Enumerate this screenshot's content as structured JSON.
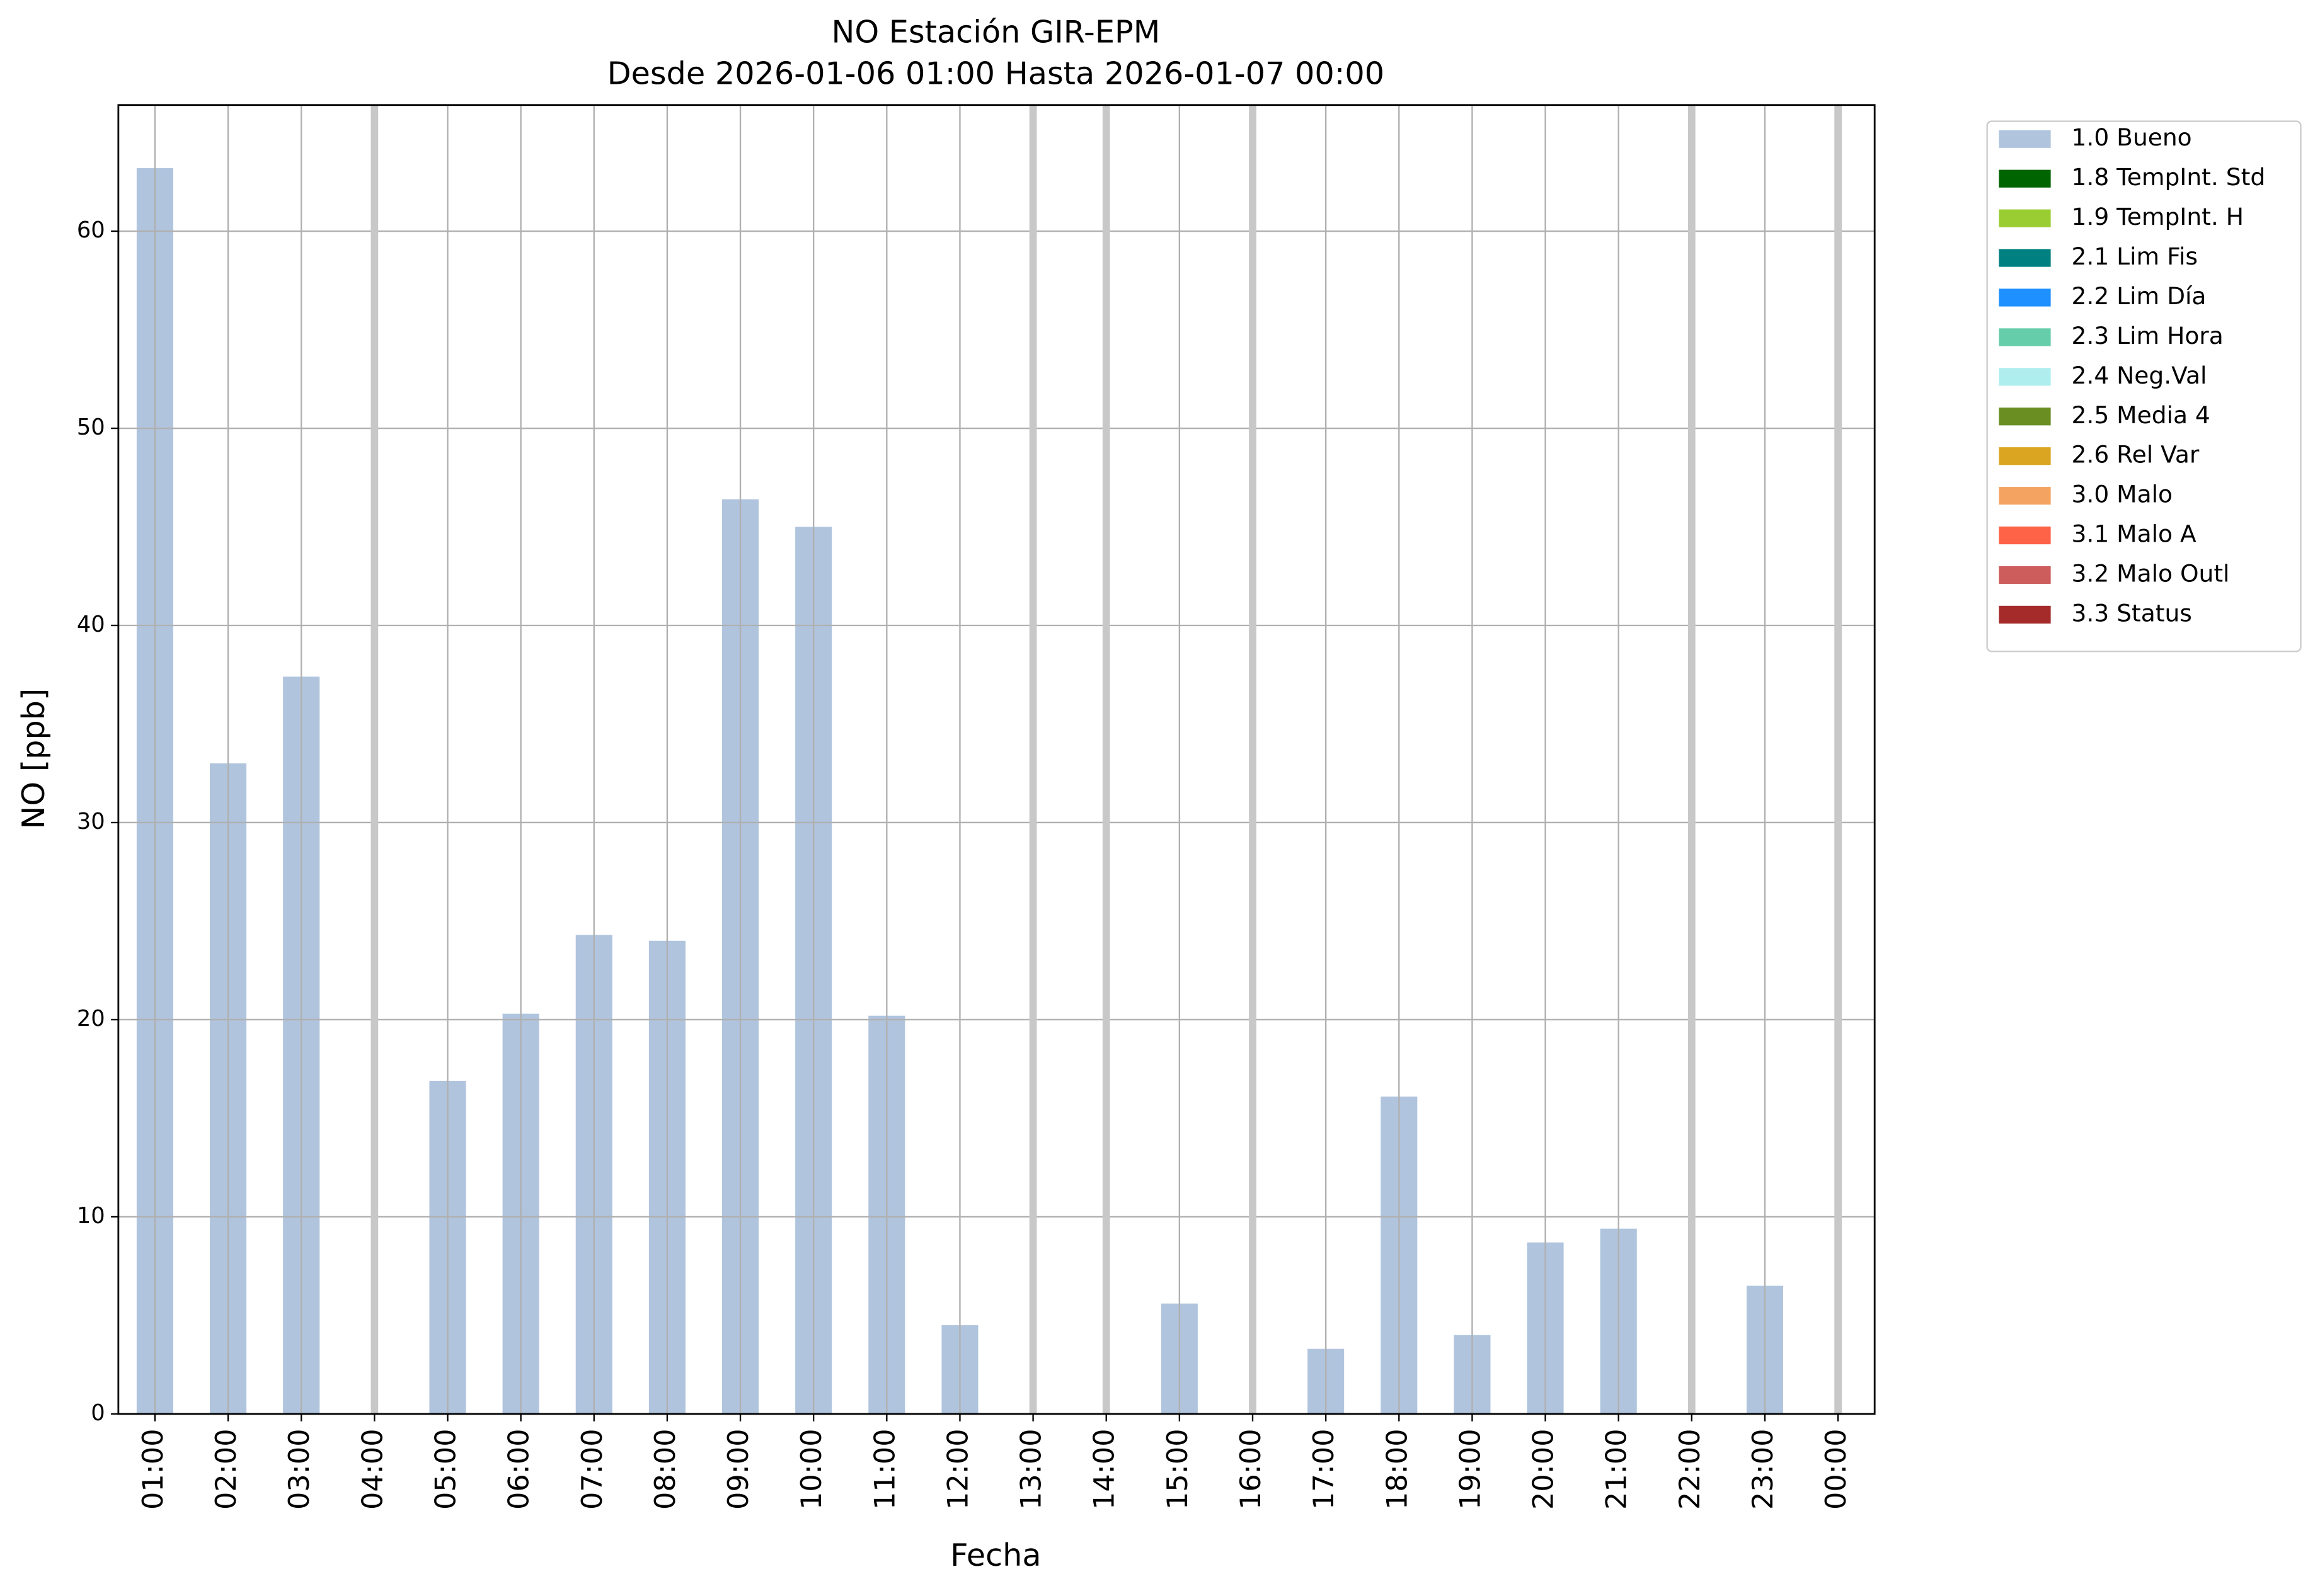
{
  "chart_data": {
    "type": "bar",
    "title": "NO Estación GIR-EPM",
    "subtitle": "Desde 2026-01-06 01:00 Hasta 2026-01-07 00:00",
    "x_label": "Fecha",
    "y_label": "NO [ppb]",
    "categories": [
      "01:00",
      "02:00",
      "03:00",
      "04:00",
      "05:00",
      "06:00",
      "07:00",
      "08:00",
      "09:00",
      "10:00",
      "11:00",
      "12:00",
      "13:00",
      "14:00",
      "15:00",
      "16:00",
      "17:00",
      "18:00",
      "19:00",
      "20:00",
      "21:00",
      "22:00",
      "23:00",
      "00:00"
    ],
    "series": [
      {
        "name": "1.0 Bueno",
        "color": "#b0c4de",
        "values": [
          63.2,
          33.0,
          37.4,
          null,
          16.9,
          20.3,
          24.3,
          24.0,
          46.4,
          45.0,
          20.2,
          4.5,
          null,
          null,
          5.6,
          null,
          3.3,
          16.1,
          4.0,
          8.7,
          9.4,
          null,
          6.5,
          null
        ]
      },
      {
        "name": "1.8 TempInt. Std",
        "color": "#006400",
        "values": [
          null,
          null,
          null,
          null,
          null,
          null,
          null,
          null,
          null,
          null,
          null,
          null,
          null,
          null,
          null,
          null,
          null,
          null,
          null,
          null,
          null,
          null,
          null,
          null
        ]
      },
      {
        "name": "1.9 TempInt. H",
        "color": "#9acd32",
        "values": [
          null,
          null,
          null,
          null,
          null,
          null,
          null,
          null,
          null,
          null,
          null,
          null,
          null,
          null,
          null,
          null,
          null,
          null,
          null,
          null,
          null,
          null,
          null,
          null
        ]
      },
      {
        "name": "2.1 Lim Fis",
        "color": "#008080",
        "values": [
          null,
          null,
          null,
          null,
          null,
          null,
          null,
          null,
          null,
          null,
          null,
          null,
          null,
          null,
          null,
          null,
          null,
          null,
          null,
          null,
          null,
          null,
          null,
          null
        ]
      },
      {
        "name": "2.2 Lim Día",
        "color": "#1e90ff",
        "values": [
          null,
          null,
          null,
          null,
          null,
          null,
          null,
          null,
          null,
          null,
          null,
          null,
          null,
          null,
          null,
          null,
          null,
          null,
          null,
          null,
          null,
          null,
          null,
          null
        ]
      },
      {
        "name": "2.3 Lim Hora",
        "color": "#66cdaa",
        "values": [
          null,
          null,
          null,
          null,
          null,
          null,
          null,
          null,
          null,
          null,
          null,
          null,
          null,
          null,
          null,
          null,
          null,
          null,
          null,
          null,
          null,
          null,
          null,
          null
        ]
      },
      {
        "name": "2.4 Neg.Val",
        "color": "#afeeee",
        "values": [
          null,
          null,
          null,
          null,
          null,
          null,
          null,
          null,
          null,
          null,
          null,
          null,
          null,
          null,
          null,
          null,
          null,
          null,
          null,
          null,
          null,
          null,
          null,
          null
        ]
      },
      {
        "name": "2.5 Media 4",
        "color": "#6b8e23",
        "values": [
          null,
          null,
          null,
          null,
          null,
          null,
          null,
          null,
          null,
          null,
          null,
          null,
          null,
          null,
          null,
          null,
          null,
          null,
          null,
          null,
          null,
          null,
          null,
          null
        ]
      },
      {
        "name": "2.6 Rel Var",
        "color": "#daa520",
        "values": [
          null,
          null,
          null,
          null,
          null,
          null,
          null,
          null,
          null,
          null,
          null,
          null,
          null,
          null,
          null,
          null,
          null,
          null,
          null,
          null,
          null,
          null,
          null,
          null
        ]
      },
      {
        "name": "3.0 Malo",
        "color": "#f4a460",
        "values": [
          null,
          null,
          null,
          null,
          null,
          null,
          null,
          null,
          null,
          null,
          null,
          null,
          null,
          null,
          null,
          null,
          null,
          null,
          null,
          null,
          null,
          null,
          null,
          null
        ]
      },
      {
        "name": "3.1 Malo A",
        "color": "#ff6347",
        "values": [
          null,
          null,
          null,
          null,
          null,
          null,
          null,
          null,
          null,
          null,
          null,
          null,
          null,
          null,
          null,
          null,
          null,
          null,
          null,
          null,
          null,
          null,
          null,
          null
        ]
      },
      {
        "name": "3.2 Malo Outl",
        "color": "#cd5c5c",
        "values": [
          null,
          null,
          null,
          null,
          null,
          null,
          null,
          null,
          null,
          null,
          null,
          null,
          null,
          null,
          null,
          null,
          null,
          null,
          null,
          null,
          null,
          null,
          null,
          null
        ]
      },
      {
        "name": "3.3 Status",
        "color": "#a52a2a",
        "values": [
          null,
          null,
          null,
          null,
          null,
          null,
          null,
          null,
          null,
          null,
          null,
          null,
          null,
          null,
          null,
          null,
          null,
          null,
          null,
          null,
          null,
          null,
          null,
          null
        ]
      }
    ],
    "ylim": [
      0,
      66.4
    ],
    "yticks": [
      0,
      10,
      20,
      30,
      40,
      50,
      60
    ],
    "grid": true,
    "legend": "outside-right"
  }
}
